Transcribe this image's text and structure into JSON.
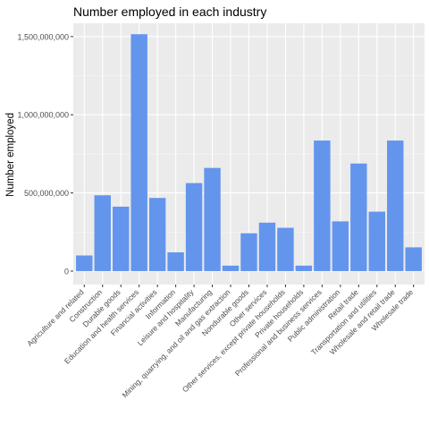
{
  "chart_data": {
    "type": "bar",
    "title": "Number employed in each industry",
    "xlabel": "",
    "ylabel": "Number employed",
    "ylim": [
      -86000000,
      1585000000
    ],
    "yticks": [
      0,
      500000000,
      1000000000,
      1500000000
    ],
    "ytick_labels": [
      "0",
      "500,000,000",
      "1,000,000,000",
      "1,500,000,000"
    ],
    "grid": true,
    "legend": "none",
    "categories": [
      "Agriculture and related",
      "Construction",
      "Durable goods",
      "Education and health services",
      "Financial activities",
      "Information",
      "Leisure and hospitality",
      "Manufacturing",
      "Mining, quarrying, and oil and gas extraction",
      "Nondurable goods",
      "Other services",
      "Other services, except private households",
      "Private households",
      "Professional and business services",
      "Public administration",
      "Retail trade",
      "Transportation and utilities",
      "Wholesale and retail trade",
      "Wholesale trade"
    ],
    "values": [
      100000000,
      485000000,
      412000000,
      1515000000,
      468000000,
      120000000,
      563000000,
      660000000,
      35000000,
      242000000,
      310000000,
      277000000,
      35000000,
      835000000,
      318000000,
      688000000,
      380000000,
      835000000,
      152000000
    ]
  },
  "colors": {
    "bar": "#6495ED",
    "panel": "#EBEBEB",
    "grid_major": "#FFFFFF",
    "grid_minor": "#F4F4F4",
    "text": "#000000",
    "tick_label": "#4D4D4D"
  }
}
